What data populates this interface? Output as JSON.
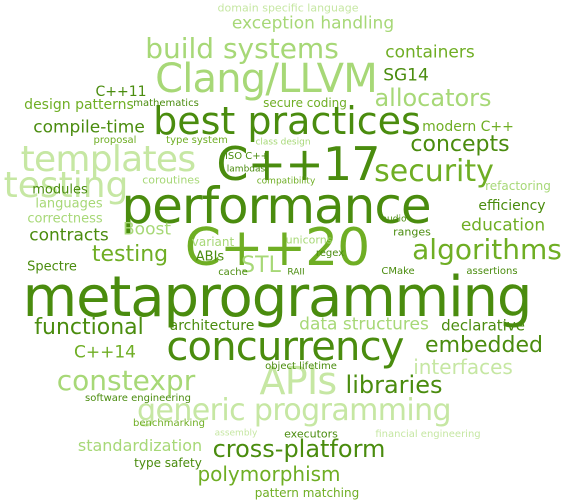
{
  "words": [
    {
      "id": "domain-specific-language",
      "text": "domain specific language",
      "tone": "pale"
    },
    {
      "id": "exception-handling",
      "text": "exception handling",
      "tone": "light"
    },
    {
      "id": "build-systems",
      "text": "build systems",
      "tone": "light"
    },
    {
      "id": "containers",
      "text": "containers",
      "tone": "mid"
    },
    {
      "id": "clang-llvm",
      "text": "Clang/LLVM",
      "tone": "light"
    },
    {
      "id": "sg14",
      "text": "SG14",
      "tone": "dark"
    },
    {
      "id": "cpp11",
      "text": "C++11",
      "tone": "dark"
    },
    {
      "id": "allocators",
      "text": "allocators",
      "tone": "light"
    },
    {
      "id": "best-practices",
      "text": "best practices",
      "tone": "dark"
    },
    {
      "id": "design-patterns",
      "text": "design patterns",
      "tone": "mid"
    },
    {
      "id": "mathematics",
      "text": "mathematics",
      "tone": "dark"
    },
    {
      "id": "secure-coding",
      "text": "secure coding",
      "tone": "mid"
    },
    {
      "id": "compile-time",
      "text": "compile-time",
      "tone": "dark"
    },
    {
      "id": "modern-cpp",
      "text": "modern C++",
      "tone": "mid"
    },
    {
      "id": "templates",
      "text": "templates",
      "tone": "pale"
    },
    {
      "id": "concepts",
      "text": "concepts",
      "tone": "dark"
    },
    {
      "id": "proposal",
      "text": "proposal",
      "tone": "mid"
    },
    {
      "id": "type-system",
      "text": "type system",
      "tone": "mid"
    },
    {
      "id": "class-design",
      "text": "class design",
      "tone": "light"
    },
    {
      "id": "iso-cpp",
      "text": "ISO C++",
      "tone": "dark"
    },
    {
      "id": "cpp17",
      "text": "C++17",
      "tone": "dark"
    },
    {
      "id": "lambdas",
      "text": "lambdas",
      "tone": "dark"
    },
    {
      "id": "security",
      "text": "security",
      "tone": "mid"
    },
    {
      "id": "testing-top",
      "text": "testing",
      "tone": "pale"
    },
    {
      "id": "coroutines",
      "text": "coroutines",
      "tone": "light"
    },
    {
      "id": "compatibility",
      "text": "compatibility",
      "tone": "mid"
    },
    {
      "id": "performance",
      "text": "performance",
      "tone": "dark"
    },
    {
      "id": "refactoring",
      "text": "refactoring",
      "tone": "light"
    },
    {
      "id": "modules",
      "text": "modules",
      "tone": "dark"
    },
    {
      "id": "languages",
      "text": "languages",
      "tone": "light"
    },
    {
      "id": "efficiency",
      "text": "efficiency",
      "tone": "dark"
    },
    {
      "id": "correctness",
      "text": "correctness",
      "tone": "light"
    },
    {
      "id": "education",
      "text": "education",
      "tone": "mid"
    },
    {
      "id": "boost",
      "text": "Boost",
      "tone": "light"
    },
    {
      "id": "contracts",
      "text": "contracts",
      "tone": "dark"
    },
    {
      "id": "cpp20",
      "text": "C++20",
      "tone": "mid"
    },
    {
      "id": "algorithms",
      "text": "algorithms",
      "tone": "mid"
    },
    {
      "id": "testing",
      "text": "testing",
      "tone": "mid"
    },
    {
      "id": "ranges",
      "text": "ranges",
      "tone": "dark"
    },
    {
      "id": "variant",
      "text": "variant",
      "tone": "light"
    },
    {
      "id": "unicorns",
      "text": "unicorns",
      "tone": "light"
    },
    {
      "id": "abis",
      "text": "ABIs",
      "tone": "dark"
    },
    {
      "id": "stl",
      "text": "STL",
      "tone": "light"
    },
    {
      "id": "regex",
      "text": "regex",
      "tone": "dark"
    },
    {
      "id": "audio",
      "text": "audio",
      "tone": "dark"
    },
    {
      "id": "spectre",
      "text": "Spectre",
      "tone": "dark"
    },
    {
      "id": "cache",
      "text": "cache",
      "tone": "dark"
    },
    {
      "id": "raii",
      "text": "RAII",
      "tone": "dark"
    },
    {
      "id": "cmake",
      "text": "CMake",
      "tone": "dark"
    },
    {
      "id": "assertions",
      "text": "assertions",
      "tone": "dark"
    },
    {
      "id": "metaprogramming",
      "text": "metaprogramming",
      "tone": "dark"
    },
    {
      "id": "functional",
      "text": "functional",
      "tone": "dark"
    },
    {
      "id": "architecture",
      "text": "architecture",
      "tone": "dark"
    },
    {
      "id": "data-structures",
      "text": "data structures",
      "tone": "light"
    },
    {
      "id": "declarative",
      "text": "declarative",
      "tone": "dark"
    },
    {
      "id": "concurrency",
      "text": "concurrency",
      "tone": "dark"
    },
    {
      "id": "embedded",
      "text": "embedded",
      "tone": "dark"
    },
    {
      "id": "cpp14",
      "text": "C++14",
      "tone": "mid"
    },
    {
      "id": "constexpr",
      "text": "constexpr",
      "tone": "light"
    },
    {
      "id": "apis",
      "text": "APIs",
      "tone": "pale"
    },
    {
      "id": "interfaces",
      "text": "interfaces",
      "tone": "pale"
    },
    {
      "id": "libraries",
      "text": "libraries",
      "tone": "dark"
    },
    {
      "id": "object-lifetime",
      "text": "object lifetime",
      "tone": "dark"
    },
    {
      "id": "software-engineering",
      "text": "software engineering",
      "tone": "dark"
    },
    {
      "id": "generic-programming",
      "text": "generic programming",
      "tone": "pale"
    },
    {
      "id": "benchmarking",
      "text": "benchmarking",
      "tone": "mid"
    },
    {
      "id": "assembly",
      "text": "assembly",
      "tone": "pale"
    },
    {
      "id": "executors",
      "text": "executors",
      "tone": "dark"
    },
    {
      "id": "financial-engineering",
      "text": "financial engineering",
      "tone": "pale"
    },
    {
      "id": "standardization",
      "text": "standardization",
      "tone": "light"
    },
    {
      "id": "cross-platform",
      "text": "cross-platform",
      "tone": "dark"
    },
    {
      "id": "type-safety",
      "text": "type safety",
      "tone": "dark"
    },
    {
      "id": "polymorphism",
      "text": "polymorphism",
      "tone": "mid"
    },
    {
      "id": "pattern-matching",
      "text": "pattern matching",
      "tone": "mid"
    }
  ]
}
